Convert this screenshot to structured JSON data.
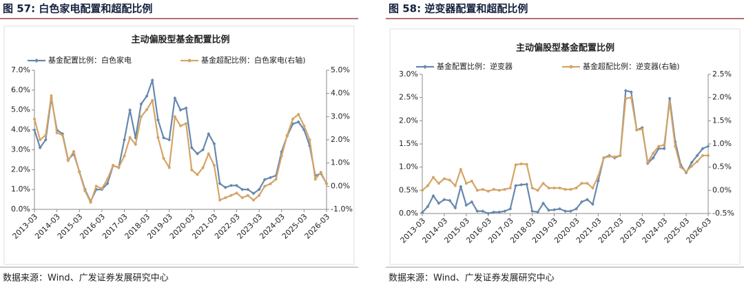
{
  "chart_data": [
    {
      "type": "line",
      "figure_label": "图 57:  白色家电配置和超配比例",
      "title": "主动偏股型基金配置比例",
      "source": "数据来源：Wind、广发证券发展研究中心",
      "categories": [
        "2013-03",
        null,
        null,
        null,
        "2014-03",
        null,
        null,
        null,
        "2015-03",
        null,
        null,
        null,
        "2016-03",
        null,
        null,
        null,
        "2017-03",
        null,
        null,
        null,
        "2018-03",
        null,
        null,
        null,
        "2019-03",
        null,
        null,
        null,
        "2020-03",
        null,
        null,
        null,
        "2021-03",
        null,
        null,
        null,
        "2022-03",
        null,
        null,
        null,
        "2023-03",
        null,
        null,
        null,
        "2024-03",
        null,
        null,
        null,
        "2025-03",
        null,
        null,
        null,
        "2026-03"
      ],
      "series": [
        {
          "name": "基金配置比例：白色家电",
          "color": "#6688ae",
          "axis": "y",
          "values": [
            4.0,
            3.1,
            3.5,
            5.6,
            4.0,
            3.8,
            2.5,
            2.8,
            1.9,
            1.0,
            0.4,
            1.0,
            1.0,
            1.3,
            2.2,
            2.1,
            3.5,
            5.0,
            3.6,
            5.3,
            5.7,
            6.5,
            4.5,
            3.6,
            3.5,
            5.6,
            5.0,
            5.1,
            3.1,
            2.8,
            3.0,
            3.8,
            3.3,
            1.3,
            1.1,
            1.2,
            1.2,
            1.0,
            1.0,
            0.8,
            1.0,
            1.5,
            1.6,
            1.7,
            2.9,
            3.7,
            4.3,
            4.4,
            4.0,
            3.2,
            1.7,
            1.8,
            1.3
          ]
        },
        {
          "name": "基金超配比例：白色家电(右轴)",
          "color": "#d4a466",
          "axis": "y2",
          "values": [
            2.9,
            2.0,
            2.2,
            3.9,
            2.3,
            2.2,
            1.1,
            1.5,
            0.6,
            -0.2,
            -0.7,
            0.0,
            -0.1,
            0.3,
            0.9,
            0.8,
            1.3,
            2.1,
            1.8,
            3.0,
            3.3,
            3.7,
            2.1,
            1.2,
            0.8,
            3.0,
            2.6,
            2.7,
            0.7,
            0.5,
            0.8,
            1.4,
            0.9,
            -0.6,
            -0.5,
            -0.4,
            -0.3,
            -0.5,
            -0.4,
            -0.6,
            -0.4,
            0.0,
            0.1,
            0.3,
            1.3,
            2.2,
            2.9,
            3.1,
            2.6,
            2.0,
            0.3,
            0.6,
            0.1
          ]
        }
      ],
      "ylim": [
        0,
        7
      ],
      "yticks": [
        {
          "value": 0,
          "label": "0.0%"
        },
        {
          "value": 1,
          "label": "1.0%"
        },
        {
          "value": 2,
          "label": "2.0%"
        },
        {
          "value": 3,
          "label": "3.0%"
        },
        {
          "value": 4,
          "label": "4.0%"
        },
        {
          "value": 5,
          "label": "5.0%"
        },
        {
          "value": 6,
          "label": "6.0%"
        },
        {
          "value": 7,
          "label": "7.0%"
        }
      ],
      "y2lim": [
        -1,
        5
      ],
      "y2ticks": [
        {
          "value": -1,
          "label": "-1.0%"
        },
        {
          "value": 0,
          "label": "0.0%"
        },
        {
          "value": 1,
          "label": "1.0%"
        },
        {
          "value": 2,
          "label": "2.0%"
        },
        {
          "value": 3,
          "label": "3.0%"
        },
        {
          "value": 4,
          "label": "4.0%"
        },
        {
          "value": 5,
          "label": "5.0%"
        }
      ],
      "legend": "top"
    },
    {
      "type": "line",
      "figure_label": "图 58:  逆变器配置和超配比例",
      "title": "主动偏股型基金配置比例",
      "source": "数据来源：Wind、广发证券发展研究中心",
      "categories": [
        "2013-03",
        null,
        null,
        null,
        "2014-03",
        null,
        null,
        null,
        "2015-03",
        null,
        null,
        null,
        "2016-03",
        null,
        null,
        null,
        "2017-03",
        null,
        null,
        null,
        "2018-03",
        null,
        null,
        null,
        "2019-03",
        null,
        null,
        null,
        "2020-03",
        null,
        null,
        null,
        "2021-03",
        null,
        null,
        null,
        "2022-03",
        null,
        null,
        null,
        "2023-03",
        null,
        null,
        null,
        "2024-03",
        null,
        null,
        null,
        "2025-03",
        null,
        null,
        null,
        "2026-03"
      ],
      "series": [
        {
          "name": "基金配置比例：逆变器",
          "color": "#6688ae",
          "axis": "y",
          "values": [
            0.02,
            0.15,
            0.38,
            0.22,
            0.3,
            0.28,
            0.12,
            0.58,
            0.18,
            0.25,
            0.05,
            0.05,
            0.0,
            0.03,
            0.03,
            0.05,
            0.1,
            0.6,
            0.62,
            0.63,
            0.05,
            0.03,
            0.22,
            0.07,
            0.08,
            0.1,
            0.05,
            0.05,
            0.1,
            0.25,
            0.3,
            0.2,
            0.7,
            1.2,
            1.25,
            1.2,
            1.25,
            2.65,
            2.62,
            1.8,
            1.85,
            1.08,
            1.2,
            1.4,
            1.4,
            2.48,
            1.55,
            1.05,
            0.88,
            1.1,
            1.25,
            1.4,
            1.45
          ]
        },
        {
          "name": "基金超配比例：逆变器(右轴)",
          "color": "#d4a466",
          "axis": "y2",
          "values": [
            0.0,
            0.1,
            0.28,
            0.15,
            0.25,
            0.22,
            0.1,
            0.45,
            0.15,
            0.2,
            0.0,
            0.02,
            -0.02,
            0.02,
            0.0,
            0.02,
            0.05,
            0.55,
            0.57,
            0.56,
            0.05,
            0.0,
            0.15,
            0.05,
            0.05,
            0.05,
            0.02,
            0.02,
            0.05,
            0.15,
            0.15,
            0.05,
            0.3,
            0.7,
            0.73,
            0.72,
            0.75,
            1.98,
            2.0,
            1.3,
            1.32,
            0.6,
            0.8,
            0.95,
            0.98,
            1.9,
            0.95,
            0.5,
            0.4,
            0.52,
            0.62,
            0.75,
            0.75
          ]
        }
      ],
      "ylim": [
        0,
        3
      ],
      "yticks": [
        {
          "value": 0,
          "label": "0.0%"
        },
        {
          "value": 0.5,
          "label": "0.5%"
        },
        {
          "value": 1,
          "label": "1.0%"
        },
        {
          "value": 1.5,
          "label": "1.5%"
        },
        {
          "value": 2,
          "label": "2.0%"
        },
        {
          "value": 2.5,
          "label": "2.5%"
        },
        {
          "value": 3,
          "label": "3.0%"
        }
      ],
      "y2lim": [
        -0.5,
        2.5
      ],
      "y2ticks": [
        {
          "value": -0.5,
          "label": "-0.5%"
        },
        {
          "value": 0,
          "label": "0.0%"
        },
        {
          "value": 0.5,
          "label": "0.5%"
        },
        {
          "value": 1,
          "label": "1.0%"
        },
        {
          "value": 1.5,
          "label": "1.5%"
        },
        {
          "value": 2,
          "label": "2.0%"
        },
        {
          "value": 2.5,
          "label": "2.5%"
        }
      ],
      "legend": "top"
    }
  ]
}
